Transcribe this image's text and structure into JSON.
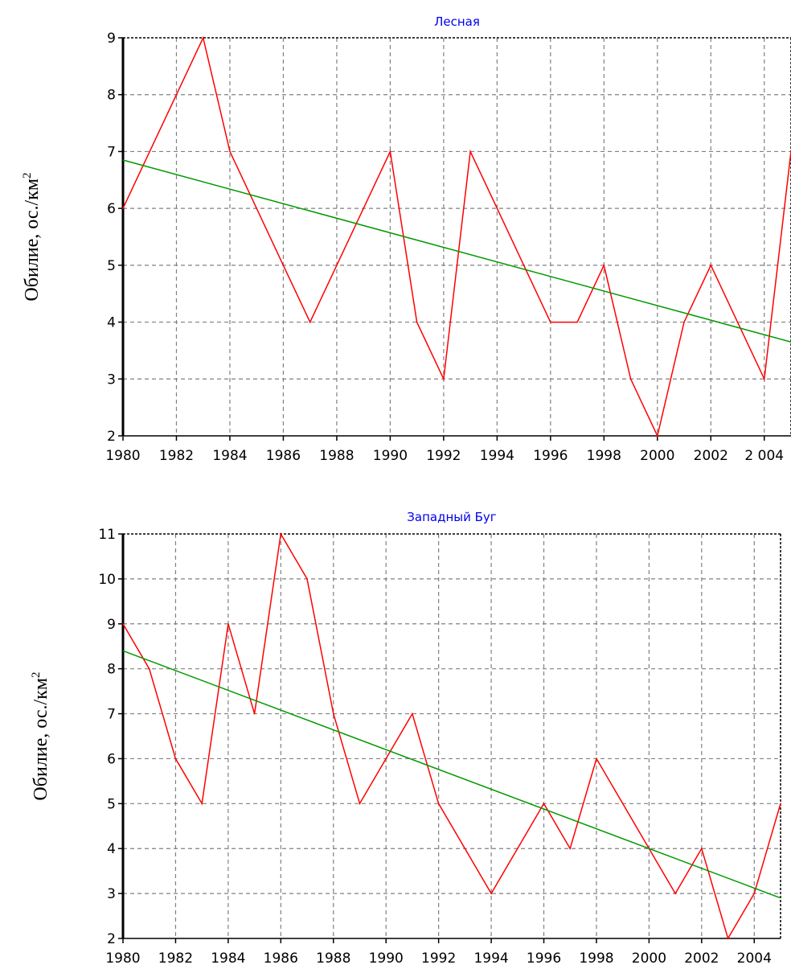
{
  "chart_data": [
    {
      "type": "line",
      "title": "Лесная",
      "ylabel": "Обилие, ос./км",
      "ylabel_superscript": "2",
      "xlim": [
        1980,
        2005
      ],
      "ylim": [
        2,
        9
      ],
      "grid": true,
      "xticks": [
        1980,
        1982,
        1984,
        1986,
        1988,
        1990,
        1992,
        1994,
        1996,
        1998,
        2000,
        2002,
        2004
      ],
      "xtick_labels": [
        "1980",
        "1982",
        "1984",
        "1986",
        "1988",
        "1990",
        "1992",
        "1994",
        "1996",
        "1998",
        "2000",
        "2002",
        "2 004"
      ],
      "yticks": [
        2,
        3,
        4,
        5,
        6,
        7,
        8,
        9
      ],
      "ytick_labels": [
        "2",
        "3",
        "4",
        "5",
        "6",
        "7",
        "8",
        "9"
      ],
      "series": [
        {
          "role": "observed",
          "color": "#ff0000",
          "x": [
            1980,
            1981,
            1982,
            1983,
            1984,
            1985,
            1986,
            1987,
            1988,
            1989,
            1990,
            1991,
            1992,
            1993,
            1994,
            1995,
            1996,
            1997,
            1998,
            1999,
            2000,
            2001,
            2002,
            2003,
            2004,
            2005
          ],
          "y": [
            6,
            7,
            8,
            9,
            7,
            6,
            5,
            4,
            5,
            6,
            7,
            4,
            3,
            7,
            6,
            5,
            4,
            4,
            5,
            3,
            2,
            4,
            5,
            4,
            3,
            7
          ]
        },
        {
          "role": "trend",
          "color": "#009900",
          "x": [
            1980,
            2005
          ],
          "y": [
            6.85,
            3.65
          ]
        }
      ]
    },
    {
      "type": "line",
      "title": "Западный Буг",
      "ylabel": "Обилие, ос./км",
      "ylabel_superscript": "2",
      "xlim": [
        1980,
        2005
      ],
      "ylim": [
        2,
        11
      ],
      "grid": true,
      "xticks": [
        1980,
        1982,
        1984,
        1986,
        1988,
        1990,
        1992,
        1994,
        1996,
        1998,
        2000,
        2002,
        2004
      ],
      "xtick_labels": [
        "1980",
        "1982",
        "1984",
        "1986",
        "1988",
        "1990",
        "1992",
        "1994",
        "1996",
        "1998",
        "2000",
        "2002",
        "2004"
      ],
      "yticks": [
        2,
        3,
        4,
        5,
        6,
        7,
        8,
        9,
        10,
        11
      ],
      "ytick_labels": [
        "2",
        "3",
        "4",
        "5",
        "6",
        "7",
        "8",
        "9",
        "10",
        "11"
      ],
      "series": [
        {
          "role": "observed",
          "color": "#ff0000",
          "x": [
            1980,
            1981,
            1982,
            1983,
            1984,
            1985,
            1986,
            1987,
            1988,
            1989,
            1990,
            1991,
            1992,
            1993,
            1994,
            1995,
            1996,
            1997,
            1998,
            1999,
            2000,
            2001,
            2002,
            2003,
            2004,
            2005
          ],
          "y": [
            9,
            8,
            6,
            5,
            9,
            7,
            11,
            10,
            7,
            5,
            6,
            7,
            5,
            4,
            3,
            4,
            5,
            4,
            6,
            5,
            4,
            3,
            4,
            2,
            3,
            5
          ]
        },
        {
          "role": "trend",
          "color": "#009900",
          "x": [
            1980,
            2005
          ],
          "y": [
            8.4,
            2.9
          ]
        }
      ]
    }
  ]
}
